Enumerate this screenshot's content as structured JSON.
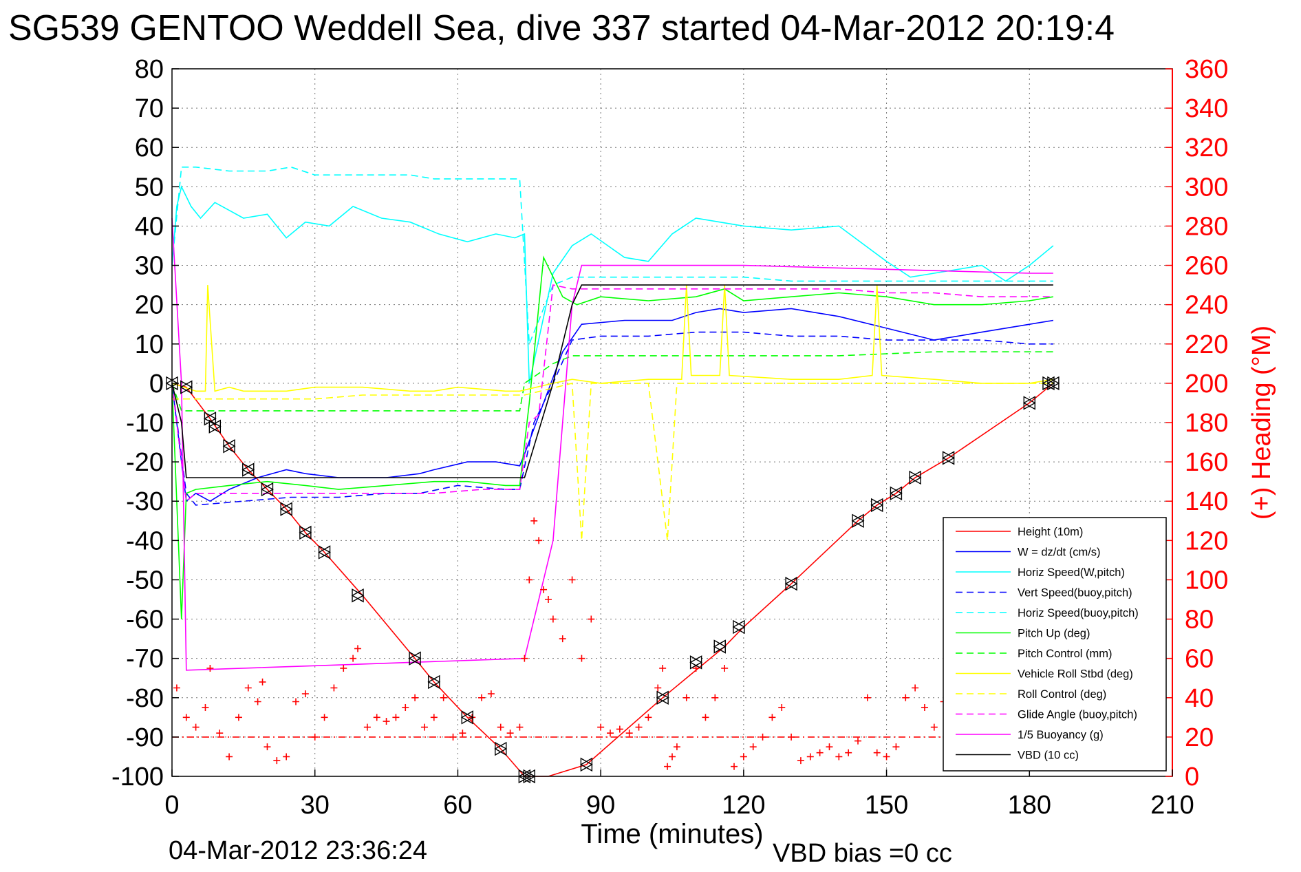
{
  "chart_data": {
    "type": "line",
    "title": "SG539 GENTOO Weddell Sea, dive 337 started 04-Mar-2012 20:19:4",
    "footer_left": "04-Mar-2012 23:36:24",
    "footer_right": "VBD bias =0 cc",
    "xlabel": "Time (minutes)",
    "ylabel": "",
    "y2label": "(+) Heading (°M)",
    "xlim": [
      0,
      210
    ],
    "ylim": [
      -100,
      80
    ],
    "y2lim": [
      0,
      360
    ],
    "xticks": [
      0,
      30,
      60,
      90,
      120,
      150,
      180,
      210
    ],
    "yticks": [
      80,
      70,
      60,
      50,
      40,
      30,
      20,
      10,
      0,
      -10,
      -20,
      -30,
      -40,
      -50,
      -60,
      -70,
      -80,
      -90,
      -100
    ],
    "y2ticks": [
      360,
      340,
      320,
      300,
      280,
      260,
      240,
      220,
      200,
      180,
      160,
      140,
      120,
      100,
      80,
      60,
      40,
      20,
      0
    ],
    "grid": true,
    "legend_position": "bottom-right",
    "colors": {
      "axis2": "#ff0000",
      "axis": "#000000",
      "grid": "#000000"
    },
    "series": [
      {
        "name": "Height (10m)",
        "color": "#ff0000",
        "dash": "solid",
        "x": [
          0,
          3,
          8,
          12,
          16,
          20,
          24,
          28,
          32,
          40,
          51,
          55,
          62,
          69,
          74,
          75,
          79,
          87,
          103,
          111,
          116,
          120,
          130,
          144,
          148,
          152,
          156,
          163,
          180,
          185
        ],
        "y": [
          0,
          -1,
          -9,
          -16,
          -22,
          -27,
          -32,
          -38,
          -43,
          -54,
          -70,
          -76,
          -85,
          -93,
          -100,
          -100,
          -100,
          -97,
          -80,
          -72,
          -67,
          -62,
          -51,
          -35,
          -31,
          -28,
          -24,
          -19,
          -5,
          0
        ]
      },
      {
        "name": "W = dz/dt (cm/s)",
        "color": "#0000ff",
        "dash": "solid",
        "x": [
          0,
          2,
          3,
          5,
          8,
          12,
          18,
          24,
          28,
          35,
          45,
          52,
          55,
          62,
          68,
          73,
          74,
          78,
          82,
          86,
          95,
          105,
          110,
          115,
          120,
          130,
          140,
          150,
          160,
          170,
          180,
          185
        ],
        "y": [
          0,
          -20,
          -30,
          -28,
          -30,
          -27,
          -24,
          -22,
          -23,
          -24,
          -24,
          -23,
          -22,
          -20,
          -20,
          -21,
          -18,
          -5,
          8,
          15,
          16,
          16,
          18,
          19,
          18,
          19,
          17,
          14,
          11,
          13,
          15,
          16
        ]
      },
      {
        "name": "Horiz Speed(W,pitch)",
        "color": "#00ffff",
        "dash": "solid",
        "x": [
          0,
          1,
          2,
          4,
          6,
          9,
          12,
          15,
          20,
          24,
          28,
          33,
          38,
          44,
          50,
          56,
          62,
          68,
          72,
          74,
          75,
          80,
          84,
          88,
          95,
          100,
          105,
          110,
          115,
          120,
          130,
          140,
          150,
          155,
          160,
          170,
          175,
          180,
          185
        ],
        "y": [
          30,
          45,
          50,
          45,
          42,
          46,
          44,
          42,
          43,
          37,
          41,
          40,
          45,
          42,
          41,
          38,
          36,
          38,
          37,
          38,
          0,
          28,
          35,
          38,
          32,
          31,
          38,
          42,
          41,
          40,
          39,
          40,
          31,
          27,
          28,
          30,
          26,
          30,
          35
        ]
      },
      {
        "name": "Vert Speed(buoy,pitch)",
        "color": "#0000ff",
        "dash": "dash",
        "x": [
          0,
          3,
          5,
          15,
          25,
          35,
          45,
          52,
          60,
          70,
          73,
          76,
          80,
          84,
          90,
          100,
          110,
          120,
          130,
          140,
          150,
          160,
          170,
          180,
          185
        ],
        "y": [
          0,
          -28,
          -31,
          -30,
          -29,
          -29,
          -28,
          -28,
          -26,
          -27,
          -27,
          -10,
          0,
          11,
          12,
          12,
          13,
          13,
          12,
          12,
          11,
          11,
          11,
          10,
          10
        ]
      },
      {
        "name": "Horiz Speed(buoy,pitch)",
        "color": "#00ffff",
        "dash": "dash",
        "x": [
          0,
          2,
          5,
          12,
          20,
          25,
          30,
          40,
          50,
          55,
          60,
          68,
          73,
          75,
          80,
          84,
          90,
          100,
          110,
          120,
          130,
          140,
          150,
          160,
          170,
          180,
          185
        ],
        "y": [
          30,
          55,
          55,
          54,
          54,
          55,
          53,
          53,
          53,
          52,
          52,
          52,
          52,
          10,
          25,
          27,
          27,
          27,
          27,
          27,
          26,
          26,
          26,
          26,
          26,
          26,
          26
        ]
      },
      {
        "name": "Pitch Up (deg)",
        "color": "#00ff00",
        "dash": "solid",
        "x": [
          0,
          2,
          3,
          5,
          12,
          20,
          28,
          35,
          45,
          55,
          62,
          70,
          73,
          75,
          78,
          82,
          85,
          90,
          100,
          110,
          116,
          120,
          130,
          140,
          150,
          160,
          170,
          180,
          185
        ],
        "y": [
          0,
          -60,
          -28,
          -27,
          -26,
          -25,
          -26,
          -27,
          -26,
          -25,
          -25,
          -26,
          -26,
          -5,
          32,
          22,
          20,
          22,
          21,
          22,
          24,
          21,
          22,
          23,
          22,
          20,
          20,
          21,
          22
        ]
      },
      {
        "name": "Pitch Control (mm)",
        "color": "#00ff00",
        "dash": "dash",
        "x": [
          0,
          2,
          5,
          20,
          40,
          55,
          60,
          73,
          74,
          80,
          84,
          100,
          120,
          140,
          160,
          185
        ],
        "y": [
          0,
          -7,
          -7,
          -7,
          -7,
          -7,
          -7,
          -7,
          0,
          5,
          7,
          7,
          7,
          7,
          8,
          8
        ]
      },
      {
        "name": "Vehicle Roll Stbd (deg)",
        "color": "#ffff00",
        "dash": "solid",
        "x": [
          0,
          5,
          7,
          7.5,
          9,
          12,
          15,
          20,
          24,
          30,
          40,
          50,
          55,
          60,
          70,
          73,
          80,
          84,
          90,
          100,
          107,
          108,
          109,
          115,
          116,
          117,
          130,
          140,
          147,
          148,
          149,
          160,
          170,
          180,
          185
        ],
        "y": [
          0,
          -2,
          -2,
          25,
          -2,
          -1,
          -2,
          -2,
          -2,
          -1,
          -1,
          -2,
          -2,
          -1,
          -2,
          -2,
          0,
          1,
          0,
          1,
          1,
          25,
          2,
          2,
          25,
          2,
          1,
          1,
          2,
          25,
          2,
          1,
          0,
          0,
          1
        ]
      },
      {
        "name": "Roll Control (deg)",
        "color": "#ffff00",
        "dash": "dash",
        "x": [
          0,
          10,
          20,
          30,
          40,
          50,
          60,
          70,
          74,
          84,
          86,
          88,
          100,
          104,
          106,
          120,
          150,
          160,
          180,
          185
        ],
        "y": [
          -4,
          -4,
          -4,
          -4,
          -3,
          -3,
          -3,
          -3,
          -3,
          0,
          -40,
          0,
          0,
          -40,
          0,
          0,
          0,
          0,
          0,
          0
        ]
      },
      {
        "name": "Glide Angle (buoy,pitch)",
        "color": "#ff00ff",
        "dash": "dash",
        "x": [
          0,
          3,
          5,
          15,
          25,
          35,
          45,
          55,
          65,
          73,
          75,
          77,
          80,
          84,
          90,
          100,
          110,
          120,
          130,
          140,
          150,
          160,
          170,
          180,
          185
        ],
        "y": [
          0,
          -30,
          -28,
          -28,
          -28,
          -28,
          -28,
          -28,
          -27,
          -27,
          -10,
          -8,
          25,
          24,
          24,
          24,
          24,
          24,
          24,
          24,
          23,
          23,
          22,
          22,
          22
        ]
      },
      {
        "name": "1/5 Buoyancy (g)",
        "color": "#ff00ff",
        "dash": "solid",
        "x": [
          0,
          2,
          3,
          74,
          80,
          84,
          86,
          90,
          120,
          150,
          180,
          185
        ],
        "y": [
          42,
          0,
          -73,
          -70,
          -40,
          20,
          30,
          30,
          30,
          29,
          28,
          28
        ]
      },
      {
        "name": "VBD (10 cc)",
        "color": "#000000",
        "dash": "solid",
        "x": [
          0,
          2,
          3,
          74,
          80,
          84,
          86,
          120,
          150,
          185
        ],
        "y": [
          0,
          -10,
          -24,
          -24,
          0,
          20,
          25,
          25,
          25,
          25
        ]
      },
      {
        "name": "",
        "color": "#ff0000",
        "dash": "dashdot",
        "x": [
          0,
          185
        ],
        "y": [
          -90,
          -90
        ]
      }
    ],
    "heading": {
      "color": "#ff0000",
      "marker": "+",
      "x": [
        1,
        3,
        5,
        7,
        8,
        10,
        12,
        14,
        16,
        18,
        19,
        20,
        22,
        24,
        26,
        28,
        30,
        32,
        34,
        36,
        38,
        39,
        41,
        43,
        45,
        47,
        49,
        51,
        53,
        55,
        57,
        59,
        61,
        63,
        65,
        67,
        69,
        71,
        73,
        74,
        75,
        76,
        77,
        78,
        79,
        80,
        82,
        84,
        86,
        88,
        90,
        92,
        94,
        96,
        98,
        100,
        102,
        103,
        104,
        105,
        106,
        108,
        110,
        112,
        114,
        116,
        118,
        120,
        122,
        124,
        126,
        128,
        130,
        132,
        134,
        136,
        138,
        140,
        142,
        144,
        146,
        148,
        150,
        152,
        154,
        156,
        158,
        160,
        162
      ],
      "y": [
        45,
        30,
        25,
        35,
        55,
        22,
        10,
        30,
        45,
        38,
        48,
        15,
        8,
        10,
        38,
        42,
        20,
        30,
        45,
        55,
        60,
        65,
        25,
        30,
        28,
        30,
        35,
        40,
        25,
        30,
        40,
        20,
        22,
        30,
        40,
        42,
        25,
        22,
        25,
        60,
        100,
        130,
        120,
        95,
        90,
        80,
        70,
        100,
        60,
        80,
        25,
        22,
        24,
        22,
        25,
        30,
        45,
        55,
        5,
        10,
        15,
        40,
        55,
        30,
        40,
        55,
        5,
        10,
        15,
        20,
        30,
        35,
        20,
        8,
        10,
        12,
        15,
        10,
        12,
        18,
        40,
        12,
        10,
        15,
        40,
        45,
        35,
        25,
        38
      ]
    },
    "dive_markers": {
      "x": [
        0,
        3,
        8,
        9,
        12,
        16,
        20,
        24,
        28,
        32,
        39,
        51,
        55,
        62,
        69,
        74,
        75,
        87,
        103,
        110,
        115,
        119,
        130,
        144,
        148,
        152,
        156,
        163,
        180,
        184,
        185
      ],
      "y": [
        0,
        -1,
        -9,
        -11,
        -16,
        -22,
        -27,
        -32,
        -38,
        -43,
        -54,
        -70,
        -76,
        -85,
        -93,
        -100,
        -100,
        -97,
        -80,
        -71,
        -67,
        -62,
        -51,
        -35,
        -31,
        -28,
        -24,
        -19,
        -5,
        0,
        0
      ]
    }
  }
}
